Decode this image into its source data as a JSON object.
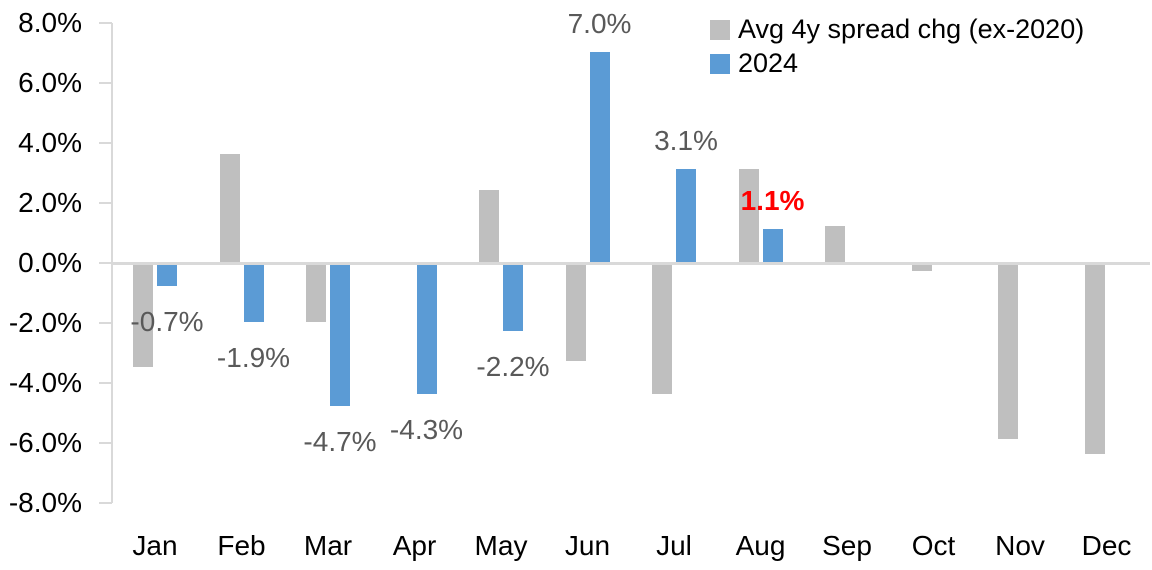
{
  "chart_data": {
    "type": "bar",
    "title": "",
    "categories": [
      "Jan",
      "Feb",
      "Mar",
      "Apr",
      "May",
      "Jun",
      "Jul",
      "Aug",
      "Sep",
      "Oct",
      "Nov",
      "Dec"
    ],
    "series": [
      {
        "name": "Avg 4y spread chg (ex-2020)",
        "color": "#bfbfbf",
        "values": [
          -3.4,
          3.6,
          -1.9,
          0.0,
          2.4,
          -3.2,
          -4.3,
          3.1,
          1.2,
          -0.2,
          -5.8,
          -6.3
        ]
      },
      {
        "name": "2024",
        "color": "#5b9bd5",
        "values": [
          -0.7,
          -1.9,
          -4.7,
          -4.3,
          -2.2,
          7.0,
          3.1,
          1.1,
          null,
          null,
          null,
          null
        ],
        "data_labels": [
          {
            "text": "-0.7%"
          },
          {
            "text": "-1.9%"
          },
          {
            "text": "-4.7%"
          },
          {
            "text": "-4.3%"
          },
          {
            "text": "-2.2%"
          },
          {
            "text": "7.0%"
          },
          {
            "text": "3.1%"
          },
          {
            "text": "1.1%",
            "color": "#ff0000",
            "bold": true
          },
          null,
          null,
          null,
          null
        ]
      }
    ],
    "ylabel": "",
    "xlabel": "",
    "ylim": [
      -8,
      8
    ],
    "ytick_step": 2,
    "ytick_labels": [
      "8.0%",
      "6.0%",
      "4.0%",
      "2.0%",
      "0.0%",
      "-2.0%",
      "-4.0%",
      "-6.0%",
      "-8.0%"
    ],
    "legend_position": "top-right",
    "grid": false
  },
  "colors": {
    "axis_line": "#d9d9d9",
    "tick_text": "#000000",
    "data_label_default": "#595959",
    "data_label_highlight": "#ff0000",
    "series_gray": "#bfbfbf",
    "series_blue": "#5b9bd5"
  }
}
